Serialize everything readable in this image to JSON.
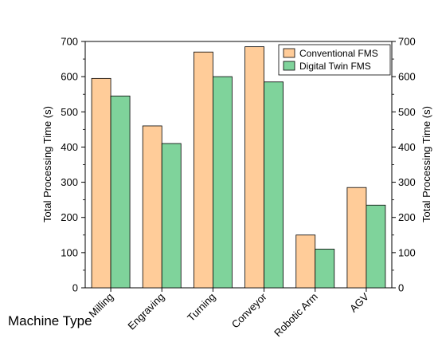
{
  "chart_data": {
    "type": "bar",
    "title": "",
    "xlabel": "Machine Type",
    "ylabel": "Total Processing Time (s)",
    "ylabel_right": "Total Processing Time (s)",
    "ylim": [
      0,
      700
    ],
    "yticks": [
      "0",
      "100",
      "200",
      "300",
      "400",
      "500",
      "600",
      "700"
    ],
    "categories": [
      "Milling",
      "Engraving",
      "Turning",
      "Conveyor",
      "Robotic Arm",
      "AGV"
    ],
    "series": [
      {
        "name": "Conventional FMS",
        "values": [
          595,
          460,
          670,
          685,
          150,
          285
        ],
        "color": "#FFCC99"
      },
      {
        "name": "Digital Twin FMS",
        "values": [
          545,
          410,
          600,
          585,
          110,
          235
        ],
        "color": "#7FD39B"
      }
    ],
    "grid": false,
    "legend_position": "top-right"
  }
}
